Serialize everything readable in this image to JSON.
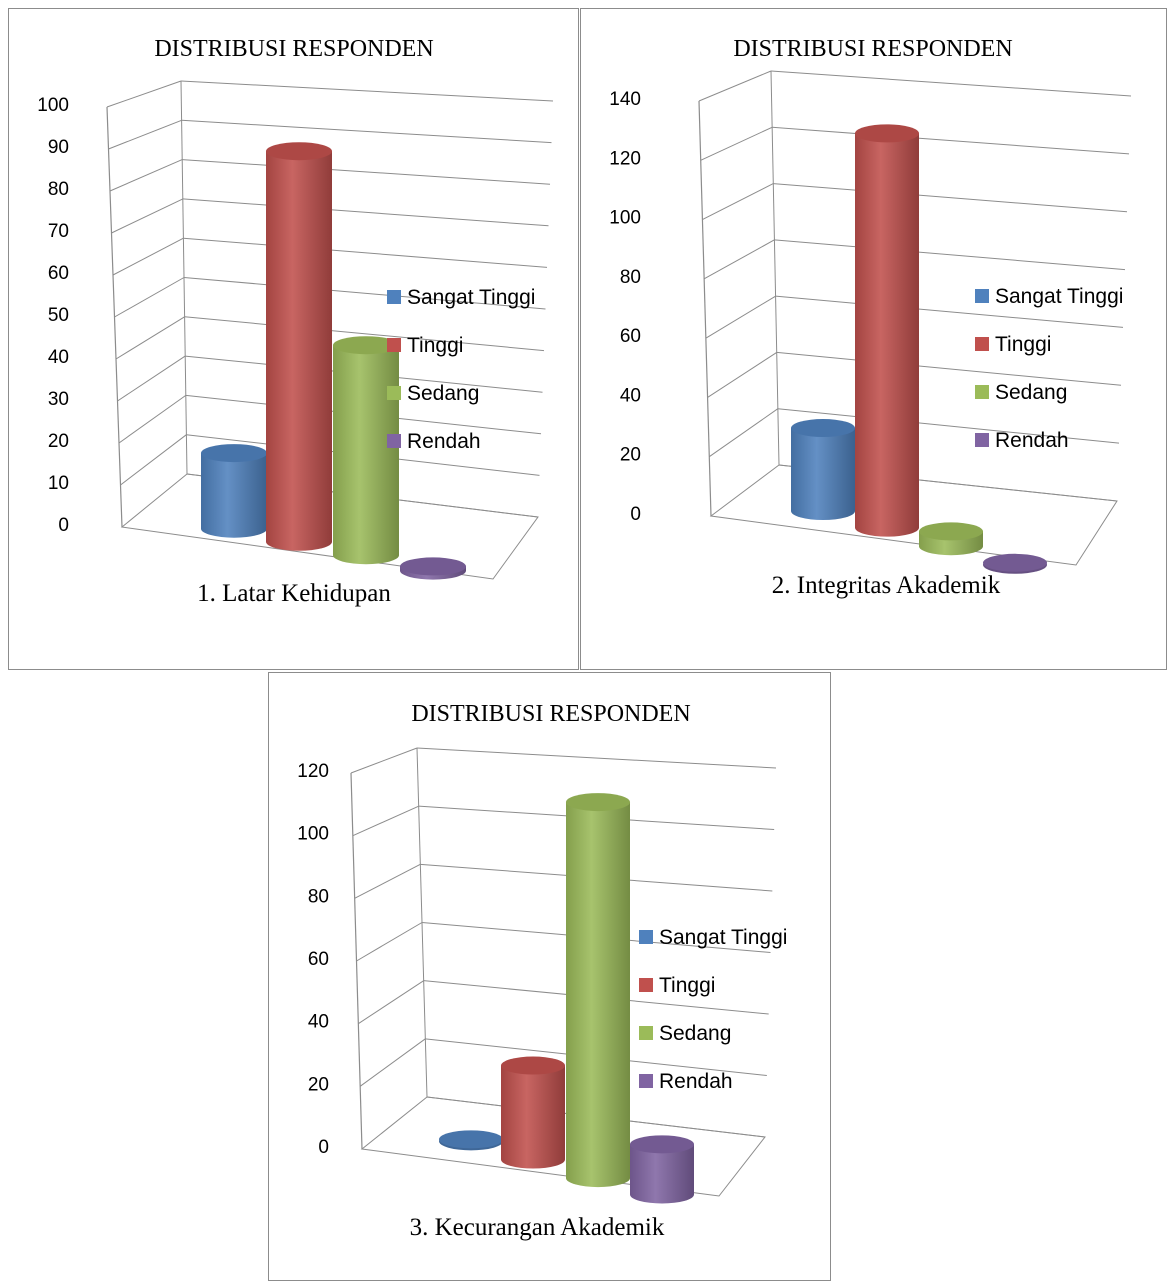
{
  "chart_data": [
    {
      "type": "bar",
      "title": "DISTRIBUSI RESPONDEN",
      "caption": "1. Latar Kehidupan",
      "categories": [
        "Sangat Tinggi",
        "Tinggi",
        "Sedang",
        "Rendah"
      ],
      "values": [
        18,
        93,
        50,
        1
      ],
      "ylim": [
        0,
        100
      ],
      "yticks": [
        "0",
        "10",
        "20",
        "30",
        "40",
        "50",
        "60",
        "70",
        "80",
        "90",
        "100"
      ],
      "grid": true,
      "legend": "right"
    },
    {
      "type": "bar",
      "title": "DISTRIBUSI RESPONDEN",
      "caption": "2. Integritas Akademik",
      "categories": [
        "Sangat Tinggi",
        "Tinggi",
        "Sedang",
        "Rendah"
      ],
      "values": [
        28,
        133,
        5,
        0
      ],
      "ylim": [
        0,
        140
      ],
      "yticks": [
        "0",
        "20",
        "40",
        "60",
        "80",
        "100",
        "120",
        "140"
      ],
      "grid": true,
      "legend": "right"
    },
    {
      "type": "bar",
      "title": "DISTRIBUSI RESPONDEN",
      "caption": "3. Kecurangan Akademik",
      "categories": [
        "Sangat Tinggi",
        "Tinggi",
        "Sedang",
        "Rendah"
      ],
      "values": [
        0,
        30,
        120,
        16
      ],
      "ylim": [
        0,
        120
      ],
      "yticks": [
        "0",
        "20",
        "40",
        "60",
        "80",
        "100",
        "120"
      ],
      "grid": true,
      "legend": "right"
    }
  ],
  "colors": {
    "Sangat Tinggi": "#4f81bd",
    "Tinggi": "#c0504d",
    "Sedang": "#9bbb59",
    "Rendah": "#8064a2"
  }
}
